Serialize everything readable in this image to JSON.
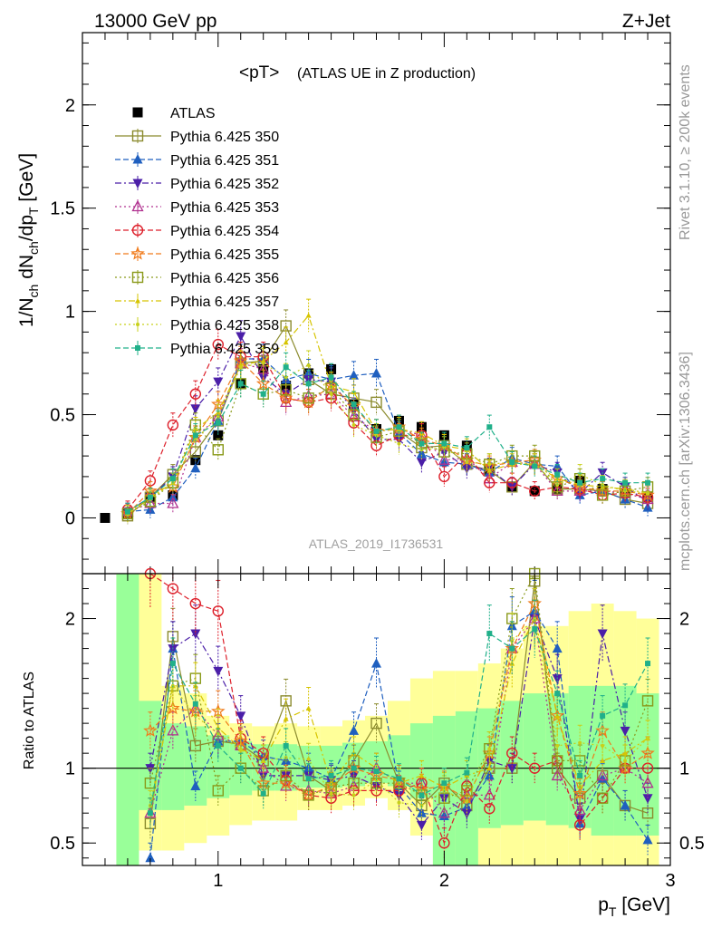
{
  "header": {
    "left": "13000 GeV pp",
    "right": "Z+Jet"
  },
  "plot_title": {
    "main": "<pT>",
    "sub": "(ATLAS UE in Z production)"
  },
  "analysis_label": "ATLAS_2019_I1736531",
  "side_labels": {
    "rivet": "Rivet 3.1.10, ≥ 200k events",
    "mcplots": "mcplots.cern.ch [arXiv:1306.3436]"
  },
  "colors": {
    "ATLAS": "#000000",
    "350": "#8b8b2e",
    "351": "#1f5fbf",
    "352": "#4b1fa8",
    "353": "#b0308f",
    "354": "#dd1f2a",
    "355": "#f07a1a",
    "356": "#8a9a1a",
    "357": "#d6c400",
    "358": "#c8d01a",
    "359": "#20b08a",
    "band_yellow": "#ffff99",
    "band_green": "#99ff99"
  },
  "chart_data": [
    {
      "type": "scatter",
      "panel": "main",
      "xlabel": "pT [GeV]",
      "ylabel": "1/Nch dNch/dpT [GeV]",
      "xlim": [
        0.4,
        3.0
      ],
      "ylim": [
        -0.27,
        2.35
      ],
      "yticks": [
        0,
        0.5,
        1,
        1.5,
        2
      ],
      "xticks": [
        1,
        2,
        3
      ],
      "legend_position": "top-left",
      "x": [
        0.5,
        0.6,
        0.7,
        0.8,
        0.9,
        1.0,
        1.1,
        1.2,
        1.3,
        1.4,
        1.5,
        1.6,
        1.7,
        1.8,
        1.9,
        2.0,
        2.1,
        2.2,
        2.3,
        2.4,
        2.5,
        2.6,
        2.7,
        2.8,
        2.9
      ],
      "series": [
        {
          "name": "ATLAS",
          "marker": "square-filled",
          "line": "none",
          "values": [
            0.0,
            0.02,
            0.1,
            0.11,
            0.28,
            0.4,
            0.65,
            0.72,
            0.64,
            0.7,
            0.72,
            0.55,
            0.43,
            0.47,
            0.44,
            0.4,
            0.35,
            0.23,
            0.15,
            0.13,
            0.14,
            0.18,
            0.14,
            0.12,
            0.1
          ]
        },
        {
          "name": "Pythia 6.425 350",
          "marker": "square-open",
          "line": "solid",
          "values": [
            null,
            0.01,
            0.1,
            0.21,
            0.32,
            0.47,
            0.75,
            0.76,
            0.93,
            0.67,
            0.6,
            0.58,
            0.56,
            0.42,
            0.34,
            0.35,
            0.26,
            0.23,
            0.15,
            0.27,
            0.14,
            0.14,
            0.13,
            0.09,
            0.07
          ]
        },
        {
          "name": "Pythia 6.425 351",
          "marker": "triangle-up-filled",
          "line": "dashed",
          "values": [
            null,
            0.03,
            0.04,
            0.1,
            0.24,
            0.47,
            0.77,
            0.77,
            0.67,
            0.7,
            0.67,
            0.69,
            0.7,
            0.41,
            0.31,
            0.27,
            0.26,
            0.22,
            0.29,
            0.26,
            0.25,
            0.11,
            0.13,
            0.09,
            0.05
          ]
        },
        {
          "name": "Pythia 6.425 352",
          "marker": "triangle-down-filled",
          "line": "dashdot",
          "values": [
            null,
            0.03,
            0.1,
            0.2,
            0.53,
            0.66,
            0.88,
            0.68,
            0.6,
            0.67,
            0.66,
            0.52,
            0.38,
            0.38,
            0.27,
            0.32,
            0.24,
            0.24,
            0.15,
            0.26,
            0.22,
            0.12,
            0.22,
            0.15,
            0.08
          ]
        },
        {
          "name": "Pythia 6.425 353",
          "marker": "triangle-up-open",
          "line": "dotted",
          "values": [
            null,
            0.03,
            0.07,
            0.07,
            0.39,
            0.49,
            0.75,
            0.72,
            0.56,
            0.59,
            0.6,
            0.49,
            0.42,
            0.43,
            0.4,
            0.28,
            0.29,
            0.19,
            0.27,
            0.26,
            0.13,
            0.13,
            0.13,
            0.12,
            0.09
          ]
        },
        {
          "name": "Pythia 6.425 354",
          "marker": "circle-open",
          "line": "dashed",
          "values": [
            null,
            0.04,
            0.18,
            0.45,
            0.6,
            0.84,
            0.78,
            0.78,
            0.58,
            0.56,
            0.58,
            0.46,
            0.35,
            0.4,
            0.4,
            0.2,
            0.31,
            0.17,
            0.17,
            0.13,
            0.15,
            0.14,
            0.11,
            0.12,
            0.1
          ]
        },
        {
          "name": "Pythia 6.425 355",
          "marker": "star-open",
          "line": "dashed",
          "values": [
            null,
            0.02,
            0.13,
            0.15,
            0.39,
            0.55,
            0.76,
            0.65,
            0.58,
            0.56,
            0.64,
            0.54,
            0.42,
            0.44,
            0.38,
            0.35,
            0.28,
            0.25,
            0.27,
            0.28,
            0.19,
            0.15,
            0.13,
            0.13,
            0.11
          ]
        },
        {
          "name": "Pythia 6.425 356",
          "marker": "square-open",
          "line": "dotted",
          "values": [
            null,
            0.02,
            0.08,
            0.17,
            0.45,
            0.33,
            0.65,
            0.6,
            0.62,
            0.58,
            0.63,
            0.5,
            0.39,
            0.42,
            0.36,
            0.32,
            0.31,
            0.26,
            0.3,
            0.3,
            0.15,
            0.19,
            0.11,
            0.13,
            0.15
          ]
        },
        {
          "name": "Pythia 6.425 357",
          "marker": "tri-small",
          "line": "dashdot",
          "values": [
            null,
            0.02,
            0.1,
            0.17,
            0.43,
            0.51,
            0.74,
            0.76,
            0.85,
            0.98,
            0.64,
            0.61,
            0.42,
            0.43,
            0.41,
            0.35,
            0.33,
            0.23,
            0.26,
            0.26,
            0.19,
            0.16,
            0.15,
            0.14,
            0.12
          ]
        },
        {
          "name": "Pythia 6.425 358",
          "marker": "dot-small",
          "line": "dotted",
          "values": [
            null,
            0.02,
            0.09,
            0.17,
            0.38,
            0.49,
            0.73,
            0.75,
            0.68,
            0.74,
            0.6,
            0.45,
            0.4,
            0.36,
            0.33,
            0.34,
            0.27,
            0.26,
            0.27,
            0.26,
            0.16,
            0.21,
            0.16,
            0.13,
            0.12
          ]
        },
        {
          "name": "Pythia 6.425 359",
          "marker": "square-small-filled",
          "line": "dashed",
          "values": [
            null,
            0.03,
            0.1,
            0.19,
            0.4,
            0.46,
            0.65,
            0.6,
            0.73,
            0.65,
            0.68,
            0.55,
            0.42,
            0.44,
            0.36,
            0.36,
            0.34,
            0.44,
            0.27,
            0.25,
            0.21,
            0.17,
            0.19,
            0.17,
            0.17
          ]
        }
      ]
    },
    {
      "type": "scatter",
      "panel": "ratio",
      "xlabel": "pT [GeV]",
      "ylabel": "Ratio to ATLAS",
      "xlim": [
        0.4,
        3.0
      ],
      "ylim": [
        0.35,
        2.3
      ],
      "yticks": [
        0.5,
        1,
        2
      ],
      "reference_line": 1,
      "x": [
        0.6,
        0.7,
        0.8,
        0.9,
        1.0,
        1.1,
        1.2,
        1.3,
        1.4,
        1.5,
        1.6,
        1.7,
        1.8,
        1.9,
        2.0,
        2.1,
        2.2,
        2.3,
        2.4,
        2.5,
        2.6,
        2.7,
        2.8,
        2.9
      ],
      "bands": {
        "yellow_lo": [
          0.35,
          0.45,
          0.45,
          0.5,
          0.55,
          0.62,
          0.65,
          0.65,
          0.72,
          0.72,
          0.75,
          0.8,
          0.72,
          0.55,
          0.35,
          0.35,
          0.35,
          0.35,
          0.35,
          0.35,
          0.35,
          0.35,
          0.35,
          0.35
        ],
        "yellow_hi": [
          2.3,
          2.3,
          1.55,
          1.5,
          1.35,
          1.3,
          1.28,
          1.3,
          1.28,
          1.28,
          1.32,
          1.35,
          1.45,
          1.6,
          1.65,
          1.65,
          1.7,
          1.8,
          1.95,
          1.95,
          2.05,
          2.1,
          2.05,
          2.0
        ],
        "green_lo": [
          0.35,
          0.72,
          0.72,
          0.75,
          0.8,
          0.82,
          0.85,
          0.85,
          0.87,
          0.87,
          0.88,
          0.9,
          0.88,
          0.8,
          0.35,
          0.35,
          0.6,
          0.62,
          0.65,
          0.62,
          0.6,
          0.55,
          0.55,
          0.55
        ],
        "green_hi": [
          2.3,
          1.45,
          1.3,
          1.28,
          1.22,
          1.18,
          1.16,
          1.16,
          1.15,
          1.15,
          1.17,
          1.18,
          1.22,
          1.3,
          1.35,
          1.38,
          1.4,
          1.45,
          1.5,
          1.5,
          1.55,
          1.55,
          1.55,
          1.5
        ]
      },
      "series": [
        {
          "name": "Pythia 6.425 350",
          "values": [
            null,
            0.63,
            1.88,
            1.15,
            1.18,
            1.16,
            1.05,
            1.45,
            0.95,
            0.85,
            1.05,
            1.3,
            0.9,
            0.75,
            0.9,
            0.75,
            1.0,
            1.0,
            2.25,
            1.0,
            0.8,
            0.95,
            0.75,
            0.7
          ]
        },
        {
          "name": "Pythia 6.425 351",
          "values": [
            null,
            0.4,
            1.8,
            0.88,
            1.18,
            1.18,
            1.08,
            1.05,
            1.0,
            0.93,
            1.25,
            1.7,
            0.88,
            0.7,
            0.68,
            0.74,
            0.95,
            1.95,
            2.05,
            1.8,
            0.63,
            0.93,
            0.75,
            0.52
          ]
        },
        {
          "name": "Pythia 6.425 352",
          "values": [
            null,
            1.0,
            1.8,
            1.9,
            1.65,
            1.35,
            0.95,
            0.95,
            0.95,
            0.92,
            0.95,
            0.88,
            0.82,
            0.62,
            0.8,
            0.7,
            1.05,
            1.0,
            2.0,
            1.6,
            0.66,
            1.9,
            1.25,
            0.8
          ]
        },
        {
          "name": "Pythia 6.425 353",
          "values": [
            null,
            0.7,
            1.25,
            1.4,
            1.22,
            1.15,
            1.0,
            0.88,
            0.85,
            0.83,
            0.88,
            1.0,
            0.9,
            0.9,
            0.7,
            0.82,
            0.82,
            1.8,
            2.0,
            0.95,
            0.72,
            0.95,
            1.0,
            0.9
          ]
        },
        {
          "name": "Pythia 6.425 354",
          "values": [
            null,
            2.3,
            2.2,
            2.1,
            2.05,
            1.2,
            1.1,
            0.92,
            0.82,
            0.8,
            0.85,
            0.85,
            0.85,
            0.9,
            0.5,
            0.88,
            0.73,
            1.1,
            1.0,
            1.05,
            0.62,
            0.8,
            1.0,
            1.0
          ]
        },
        {
          "name": "Pythia 6.425 355",
          "values": [
            null,
            1.25,
            1.4,
            1.38,
            1.38,
            1.18,
            0.9,
            0.9,
            0.82,
            0.88,
            1.0,
            0.95,
            0.92,
            0.86,
            0.88,
            0.8,
            1.1,
            1.8,
            2.1,
            1.35,
            0.83,
            1.25,
            1.0,
            1.1
          ]
        },
        {
          "name": "Pythia 6.425 356",
          "values": [
            null,
            0.9,
            1.55,
            1.6,
            0.85,
            1.0,
            0.85,
            0.95,
            0.82,
            0.87,
            0.9,
            0.9,
            0.9,
            0.82,
            0.8,
            0.85,
            1.13,
            2.0,
            2.3,
            1.05,
            1.05,
            0.8,
            1.05,
            1.45
          ]
        },
        {
          "name": "Pythia 6.425 357",
          "values": [
            null,
            0.7,
            1.55,
            1.55,
            1.27,
            1.13,
            1.05,
            1.33,
            1.4,
            0.9,
            1.1,
            1.0,
            0.9,
            0.95,
            0.87,
            0.95,
            1.0,
            1.7,
            2.0,
            1.35,
            0.88,
            1.05,
            1.1,
            1.2
          ]
        },
        {
          "name": "Pythia 6.425 358",
          "values": [
            null,
            0.75,
            1.55,
            1.35,
            1.23,
            1.12,
            1.05,
            1.07,
            1.06,
            0.83,
            0.82,
            0.92,
            0.77,
            0.75,
            0.85,
            0.78,
            1.13,
            1.85,
            2.0,
            1.15,
            1.17,
            1.15,
            1.05,
            1.2
          ]
        },
        {
          "name": "Pythia 6.425 359",
          "values": [
            null,
            0.7,
            1.7,
            1.43,
            1.15,
            1.0,
            0.83,
            1.15,
            0.93,
            0.95,
            1.0,
            0.98,
            0.93,
            0.82,
            0.9,
            0.97,
            1.9,
            1.8,
            1.93,
            1.5,
            0.95,
            1.35,
            1.42,
            1.7
          ]
        }
      ]
    }
  ]
}
